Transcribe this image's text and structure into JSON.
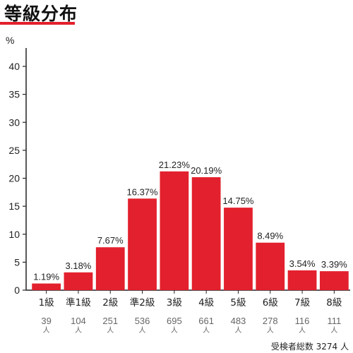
{
  "title": "等級分布",
  "colors": {
    "accent": "#e3202d",
    "bar": "#e3202d",
    "axis": "#222222"
  },
  "chart_data": {
    "type": "bar",
    "title": "等級分布",
    "ylabel": "%",
    "xlabel": "",
    "ylim": [
      0,
      45
    ],
    "yticks": [
      0,
      5,
      10,
      15,
      20,
      25,
      30,
      35,
      40
    ],
    "grid": false,
    "categories": [
      "1級",
      "準1級",
      "2級",
      "準2級",
      "3級",
      "4級",
      "5級",
      "6級",
      "7級",
      "8級"
    ],
    "values": [
      1.19,
      3.18,
      7.67,
      16.37,
      21.23,
      20.19,
      14.75,
      8.49,
      3.54,
      3.39
    ],
    "value_labels": [
      "1.19%",
      "3.18%",
      "7.67%",
      "16.37%",
      "21.23%",
      "20.19%",
      "14.75%",
      "8.49%",
      "3.54%",
      "3.39%"
    ],
    "counts": [
      39,
      104,
      251,
      536,
      695,
      661,
      483,
      278,
      116,
      111
    ],
    "count_unit": "人"
  },
  "total": "受検者総数 3274 人"
}
